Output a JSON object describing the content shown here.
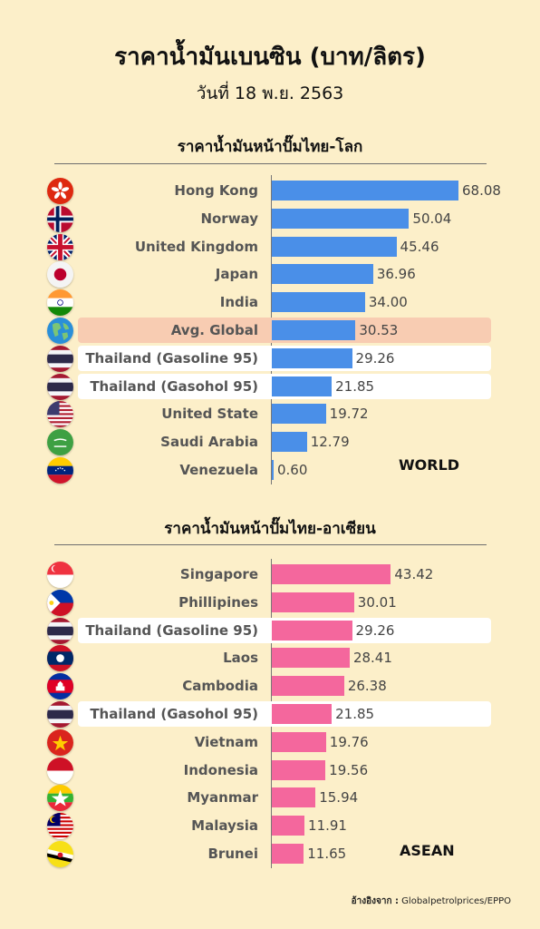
{
  "title": "ราคาน้ำมันเบนซิน (บาท/ลิตร)",
  "subtitle": "วันที่ 18 พ.ย. 2563",
  "source": {
    "label": "อ้างอิงจาก :",
    "text": "Globalpetrolprices/EPPO"
  },
  "chart_data": [
    {
      "type": "bar",
      "orientation": "horizontal",
      "title": "ราคาน้ำมันหน้าปั๊มไทย-โลก",
      "tag": "WORLD",
      "color": "#4a8fe8",
      "xlim": [
        0,
        68.08
      ],
      "categories": [
        "Hong Kong",
        "Norway",
        "United Kingdom",
        "Japan",
        "India",
        "Avg. Global",
        "Thailand (Gasoline 95)",
        "Thailand (Gasohol 95)",
        "United State",
        "Saudi Arabia",
        "Venezuela"
      ],
      "values": [
        68.08,
        50.04,
        45.46,
        36.96,
        34.0,
        30.53,
        29.26,
        21.85,
        19.72,
        12.79,
        0.6
      ],
      "labels": [
        "68.08",
        "50.04",
        "45.46",
        "36.96",
        "34.00",
        "30.53",
        "29.26",
        "21.85",
        "19.72",
        "12.79",
        "0.60"
      ],
      "highlights": [
        "",
        "",
        "",
        "",
        "",
        "peach",
        "white",
        "white",
        "",
        "",
        ""
      ],
      "flags": [
        "hong-kong-flag-icon",
        "norway-flag-icon",
        "uk-flag-icon",
        "japan-flag-icon",
        "india-flag-icon",
        "globe-icon",
        "thailand-flag-icon",
        "thailand-flag-icon",
        "usa-flag-icon",
        "saudi-arabia-flag-icon",
        "venezuela-flag-icon"
      ]
    },
    {
      "type": "bar",
      "orientation": "horizontal",
      "title": "ราคาน้ำมันหน้าปั๊มไทย-อาเซียน",
      "tag": "ASEAN",
      "color": "#f4679d",
      "xlim": [
        0,
        68.08
      ],
      "categories": [
        "Singapore",
        "Phillipines",
        "Thailand (Gasoline 95)",
        "Laos",
        "Cambodia",
        "Thailand (Gasohol 95)",
        "Vietnam",
        "Indonesia",
        "Myanmar",
        "Malaysia",
        "Brunei"
      ],
      "values": [
        43.42,
        30.01,
        29.26,
        28.41,
        26.38,
        21.85,
        19.76,
        19.56,
        15.94,
        11.91,
        11.65
      ],
      "labels": [
        "43.42",
        "30.01",
        "29.26",
        "28.41",
        "26.38",
        "21.85",
        "19.76",
        "19.56",
        "15.94",
        "11.91",
        "11.65"
      ],
      "highlights": [
        "",
        "",
        "white",
        "",
        "",
        "white",
        "",
        "",
        "",
        "",
        ""
      ],
      "flags": [
        "singapore-flag-icon",
        "philippines-flag-icon",
        "thailand-flag-icon",
        "laos-flag-icon",
        "cambodia-flag-icon",
        "thailand-flag-icon",
        "vietnam-flag-icon",
        "indonesia-flag-icon",
        "myanmar-flag-icon",
        "malaysia-flag-icon",
        "brunei-flag-icon"
      ]
    }
  ]
}
